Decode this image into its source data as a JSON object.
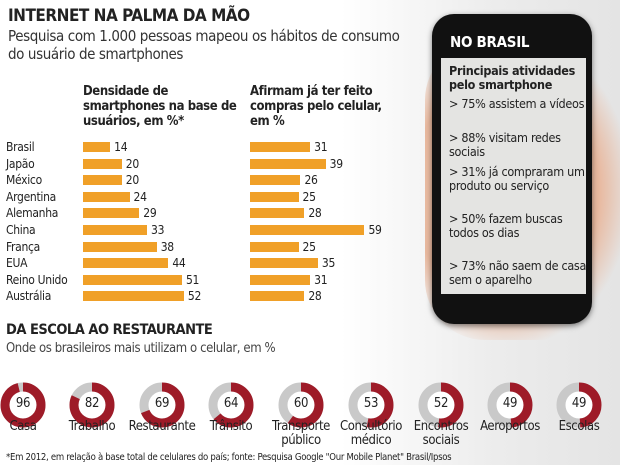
{
  "title": "INTERNET NA PALMA DA MÃO",
  "subtitle": "Pesquisa com 1.000 pessoas mapeou os hábitos de consumo do usuário de smartphones",
  "colors": {
    "bar": "#f0a028",
    "donut_fill": "#9e1b28",
    "donut_rest": "#c9c9c9",
    "phone": "#111111"
  },
  "chart_data": [
    {
      "type": "bar",
      "orientation": "horizontal",
      "title": "Densidade de smartphones na base de usuários, em %*",
      "categories": [
        "Brasil",
        "Japão",
        "México",
        "Argentina",
        "Alemanha",
        "China",
        "França",
        "EUA",
        "Reino Unido",
        "Austrália"
      ],
      "values": [
        14,
        20,
        20,
        24,
        29,
        33,
        38,
        44,
        51,
        52
      ]
    },
    {
      "type": "bar",
      "orientation": "horizontal",
      "title": "Afirmam já ter feito compras pelo celular, em %",
      "categories": [
        "Brasil",
        "Japão",
        "México",
        "Argentina",
        "Alemanha",
        "China",
        "França",
        "EUA",
        "Reino Unido",
        "Austrália"
      ],
      "values": [
        31,
        39,
        26,
        25,
        28,
        59,
        25,
        35,
        31,
        28
      ]
    },
    {
      "type": "pie",
      "variant": "donut",
      "title": "DA ESCOLA AO RESTAURANTE",
      "subtitle": "Onde os brasileiros mais utilizam o celular, em %",
      "categories": [
        "Casa",
        "Trabalho",
        "Restaurante",
        "Trânsito",
        "Transporte público",
        "Consultório médico",
        "Encontros sociais",
        "Aeroportos",
        "Escolas"
      ],
      "labels": [
        [
          "Casa"
        ],
        [
          "Trabalho"
        ],
        [
          "Restaurante"
        ],
        [
          "Trânsito"
        ],
        [
          "Transporte",
          "público"
        ],
        [
          "Consultório",
          "médico"
        ],
        [
          "Encontros",
          "sociais"
        ],
        [
          "Aeroportos"
        ],
        [
          "Escolas"
        ]
      ],
      "values": [
        96,
        82,
        69,
        64,
        60,
        53,
        52,
        49,
        49
      ]
    }
  ],
  "phone": {
    "title": "NO BRASIL",
    "heading": "Principais atividades pelo smartphone",
    "items": [
      "> 75% assistem a vídeos",
      "> 88% visitam redes sociais",
      "> 31% já compraram um produto ou serviço",
      "> 50% fazem buscas todos os dias",
      "> 73% não saem de casa sem o aparelho"
    ]
  },
  "footnote": "*Em 2012, em relação à base total de celulares do país; fonte: Pesquisa Google \"Our Mobile Planet\" Brasil/Ipsos"
}
